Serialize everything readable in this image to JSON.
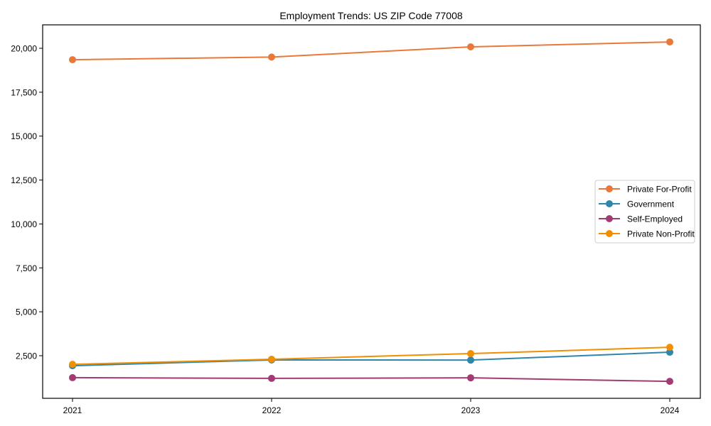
{
  "chart_data": {
    "type": "line",
    "title": "Employment Trends: US ZIP Code 77008",
    "xlabel": "",
    "ylabel": "",
    "categories": [
      "2021",
      "2022",
      "2023",
      "2024"
    ],
    "x": [
      2021,
      2022,
      2023,
      2024
    ],
    "yticks": [
      2500,
      5000,
      7500,
      10000,
      12500,
      15000,
      17500,
      20000
    ],
    "ytick_labels": [
      "2,500",
      "5,000",
      "7,500",
      "10,000",
      "12,500",
      "15,000",
      "17,500",
      "20,000"
    ],
    "ylim": [
      0,
      21300
    ],
    "grid": false,
    "legend_position": "center right",
    "series": [
      {
        "name": "Private For-Profit",
        "color": "#E8793A",
        "values": [
          19350,
          19500,
          20080,
          20360
        ]
      },
      {
        "name": "Government",
        "color": "#2E86AB",
        "values": [
          1930,
          2260,
          2250,
          2700
        ]
      },
      {
        "name": "Self-Employed",
        "color": "#A23B72",
        "values": [
          1250,
          1210,
          1240,
          1040
        ]
      },
      {
        "name": "Private Non-Profit",
        "color": "#F18F01",
        "values": [
          2010,
          2300,
          2620,
          2980
        ]
      }
    ]
  }
}
